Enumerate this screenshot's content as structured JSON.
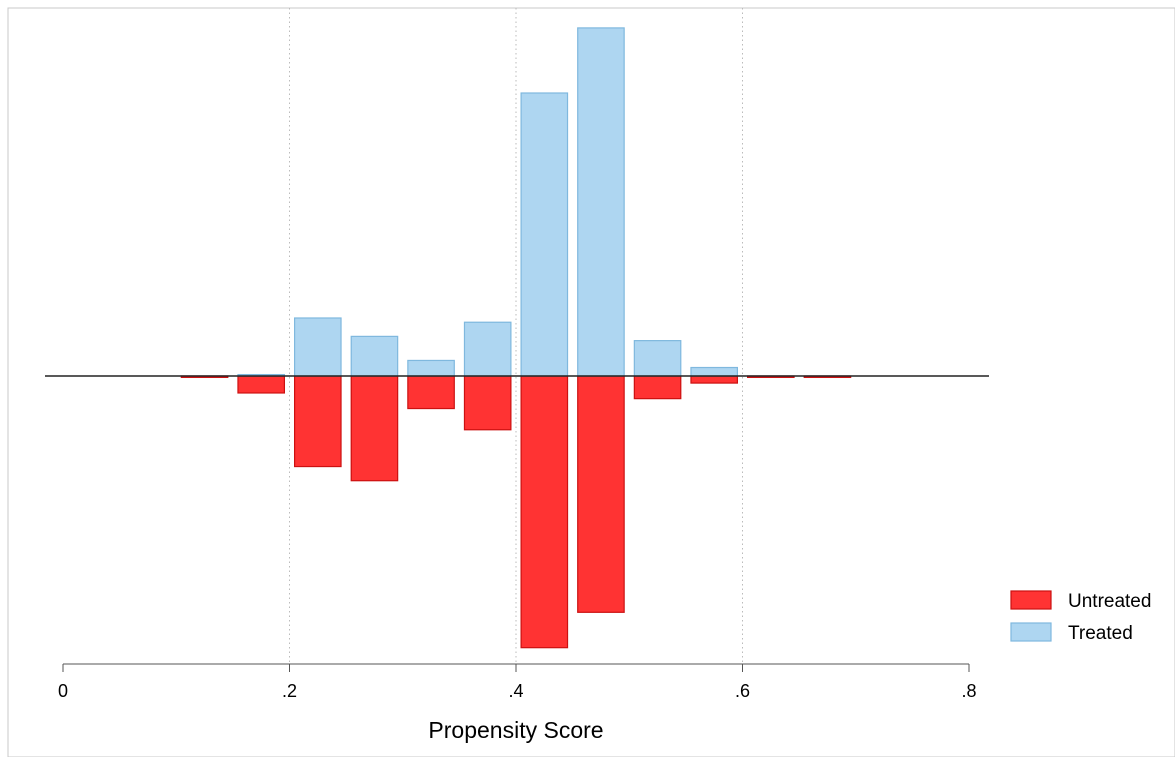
{
  "chart_data": {
    "type": "bar",
    "title": "",
    "xlabel": "Propensity Score",
    "ylabel": "",
    "xlim": [
      0,
      0.8
    ],
    "x_ticks": [
      {
        "value": 0,
        "label": "0"
      },
      {
        "value": 0.2,
        "label": ".2"
      },
      {
        "value": 0.4,
        "label": ".4"
      },
      {
        "value": 0.6,
        "label": ".6"
      },
      {
        "value": 0.8,
        "label": ".8"
      }
    ],
    "bin_width": 0.05,
    "bin_starts": [
      0.1,
      0.15,
      0.2,
      0.25,
      0.3,
      0.35,
      0.4,
      0.45,
      0.5,
      0.55,
      0.6,
      0.65
    ],
    "value_range": [
      -1,
      1.23
    ],
    "grid": "vertical dotted at major ticks",
    "legend_position": "right",
    "series": [
      {
        "name": "Untreated",
        "direction": "below",
        "color": "#FF3333",
        "edge_color": "#CC1111",
        "values": [
          0.005,
          0.06,
          0.32,
          0.37,
          0.115,
          0.19,
          0.96,
          0.835,
          0.08,
          0.025,
          0.005,
          0.005
        ]
      },
      {
        "name": "Treated",
        "direction": "above",
        "color": "#AED6F1",
        "edge_color": "#7FB8DE",
        "values": [
          0,
          0.005,
          0.205,
          0.14,
          0.055,
          0.19,
          1.0,
          1.23,
          0.125,
          0.03,
          0,
          0
        ]
      }
    ]
  },
  "legend": {
    "items": [
      {
        "label": "Untreated",
        "color": "#FF3333",
        "edge_color": "#CC1111"
      },
      {
        "label": "Treated",
        "color": "#AED6F1",
        "edge_color": "#7FB8DE"
      }
    ]
  }
}
